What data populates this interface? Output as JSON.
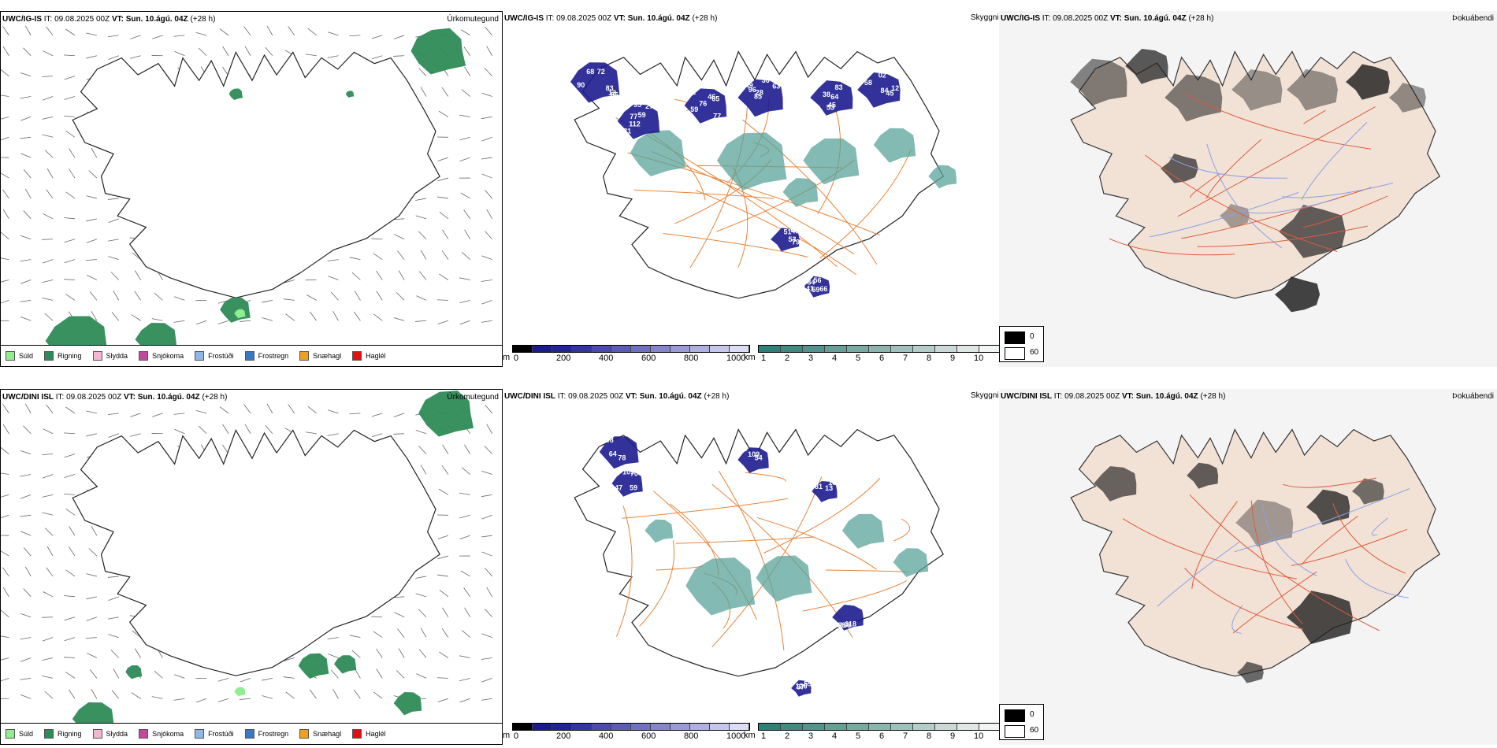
{
  "rows": [
    {
      "model": "UWC/IG-IS",
      "it_label": "IT:",
      "it_value": "09.08.2025 00Z",
      "vt_label": "VT:",
      "vt_value": "Sun. 10.ágú. 04Z",
      "lead": "(+28 h)",
      "precip_title": "Úrkomutegund",
      "fog_title": "Þokuábendi",
      "visibility_title": "Skyggni",
      "cloud_labels": [
        "90",
        "77",
        "76",
        "96",
        "45",
        "12",
        "53",
        "84",
        "83",
        "81",
        "65",
        "85",
        "64",
        "02",
        "49",
        "59",
        "13",
        "27",
        "82",
        "49",
        "38",
        "45",
        "51",
        "66",
        "85",
        "59",
        "46",
        "63",
        "53",
        "58",
        "79",
        "56",
        "72",
        "95",
        "59",
        "28",
        "83",
        "84",
        "62",
        "141",
        "68",
        "112",
        "77",
        "36"
      ]
    },
    {
      "model": "UWC/DINI ISL",
      "it_label": "IT:",
      "it_value": "09.08.2025 00Z",
      "vt_label": "VT:",
      "vt_value": "Sun. 10.ágú. 04Z",
      "lead": "(+28 h)",
      "precip_title": "Úrkomutegund",
      "fog_title": "Þokuábendi",
      "visibility_title": "Skyggni",
      "cloud_labels": [
        "57",
        "109",
        "109",
        "109",
        "118",
        "126",
        "78",
        "70",
        "54",
        "81",
        "368",
        "87",
        "198",
        "59",
        "28",
        "13",
        "66",
        "59",
        "64",
        "47"
      ]
    }
  ],
  "precip_legend": [
    {
      "name": "Súld",
      "color": "#90ee90"
    },
    {
      "name": "Rigning",
      "color": "#2e8b57"
    },
    {
      "name": "Slydda",
      "color": "#f4b6d2"
    },
    {
      "name": "Snjókoma",
      "color": "#c2499b"
    },
    {
      "name": "Frostúði",
      "color": "#8fb8e8"
    },
    {
      "name": "Frostregn",
      "color": "#3a78c4"
    },
    {
      "name": "Snæhagl",
      "color": "#f0a020"
    },
    {
      "name": "Haglél",
      "color": "#e01010"
    }
  ],
  "cloud_base_bar": {
    "unit": "m",
    "ticks": [
      "0",
      "200",
      "400",
      "600",
      "800",
      "1000"
    ],
    "colors": [
      "#000000",
      "#1a1a8c",
      "#22229a",
      "#3333a6",
      "#4a4ab0",
      "#5c5cb8",
      "#7070c2",
      "#8585cc",
      "#9a9ad6",
      "#b0b0e0",
      "#c6c6ea",
      "#dcdcf4"
    ]
  },
  "visibility_bar": {
    "unit": "km",
    "ticks": [
      "1",
      "2",
      "3",
      "4",
      "5",
      "6",
      "7",
      "8",
      "9",
      "10"
    ],
    "colors": [
      "#2f8076",
      "#408a80",
      "#52948b",
      "#659f96",
      "#78aaa2",
      "#8cb5ae",
      "#a0c1bb",
      "#b5cdc8",
      "#cad9d5",
      "#dfe6e4",
      "#f2f5f4"
    ]
  },
  "fog_legend": [
    {
      "label": "0",
      "color": "#000000"
    },
    {
      "label": "60",
      "color": "#ffffff"
    }
  ],
  "colors": {
    "rain": "#2e8b57",
    "drizzle": "#90ee90",
    "cloud_dark": "#1c1c8f",
    "vis_teal": "#5aa39a",
    "roads": "#e8843a",
    "fog_land": "#f2e2d6",
    "fog_roads": "#e05a3a",
    "fog_rivers": "#8aa0e8"
  }
}
